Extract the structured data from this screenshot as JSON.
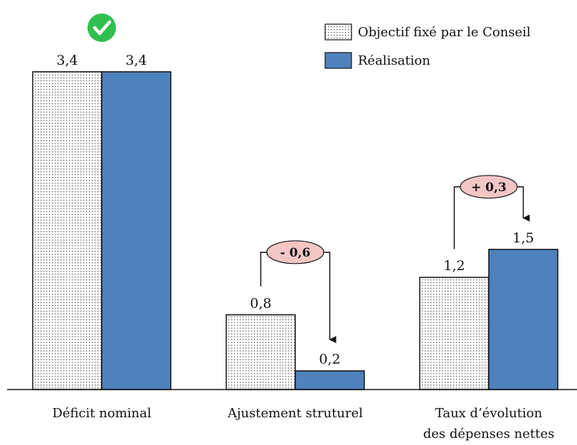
{
  "chart_data": {
    "type": "bar",
    "categories": [
      [
        "Déficit nominal"
      ],
      [
        "Ajustement struturel"
      ],
      [
        "Taux d’évolution",
        "des dépenses nettes"
      ]
    ],
    "series": [
      {
        "name": "Objectif fixé par le Conseil",
        "values": [
          3.4,
          0.8,
          1.2
        ],
        "labels": [
          "3,4",
          "0,8",
          "1,2"
        ],
        "pattern": "dotted"
      },
      {
        "name": "Réalisation",
        "values": [
          3.4,
          0.2,
          1.5
        ],
        "labels": [
          "3,4",
          "0,2",
          "1,5"
        ],
        "color": "#4f81bd"
      }
    ],
    "differences": [
      null,
      "- 0,6",
      "+ 0,3"
    ],
    "check_on_category": 0,
    "ylim": [
      0,
      3.4
    ],
    "grid": false,
    "legend_position": "top-right",
    "colors": {
      "realisation": "#4f81bd",
      "check": "#2ec04f",
      "diff_bubble": "#f4c6c6",
      "outline": "#111111"
    }
  }
}
